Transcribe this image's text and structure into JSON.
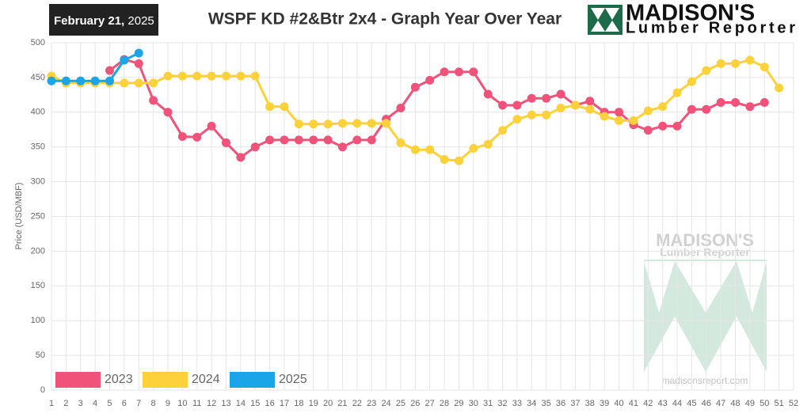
{
  "chart_data": {
    "type": "line",
    "date": {
      "bold": "February 21,",
      "regular": "2025"
    },
    "title": "WSPF KD #2&Btr 2x4 - Graph Year Over Year",
    "logo": {
      "name": "MADISON'S",
      "sub": "Lumber Reporter"
    },
    "watermark": {
      "name": "MADISON'S",
      "sub": "Lumber Reporter",
      "url": "madisonsreport.com"
    },
    "y_label": "Price  (USD/MBF)",
    "x": [
      1,
      2,
      3,
      4,
      5,
      6,
      7,
      8,
      9,
      10,
      11,
      12,
      13,
      14,
      15,
      16,
      17,
      18,
      19,
      20,
      21,
      22,
      23,
      24,
      25,
      26,
      27,
      28,
      29,
      30,
      31,
      32,
      33,
      34,
      35,
      36,
      37,
      38,
      39,
      40,
      41,
      42,
      43,
      44,
      45,
      46,
      47,
      48,
      49,
      50,
      51,
      52
    ],
    "xlim": [
      1,
      52
    ],
    "ylim": [
      0,
      500
    ],
    "yticks": [
      0,
      50,
      100,
      150,
      200,
      250,
      300,
      350,
      400,
      450,
      500
    ],
    "grid": true,
    "legend": "bottom-left",
    "series": [
      {
        "name": "2023",
        "color": "#f0527a",
        "values": [
          null,
          null,
          null,
          null,
          460,
          476,
          470,
          417,
          400,
          365,
          364,
          380,
          356,
          335,
          350,
          360,
          360,
          360,
          360,
          360,
          350,
          360,
          360,
          390,
          406,
          436,
          446,
          458,
          458,
          458,
          426,
          410,
          410,
          420,
          420,
          426,
          410,
          416,
          400,
          400,
          382,
          374,
          380,
          380,
          404,
          404,
          414,
          414,
          408,
          414,
          null,
          null
        ]
      },
      {
        "name": "2024",
        "color": "#fdd13a",
        "values": [
          452,
          442,
          442,
          442,
          442,
          442,
          442,
          442,
          452,
          452,
          452,
          452,
          452,
          452,
          452,
          408,
          408,
          383,
          383,
          383,
          384,
          384,
          384,
          384,
          356,
          346,
          346,
          332,
          330,
          348,
          354,
          374,
          390,
          396,
          396,
          406,
          410,
          404,
          394,
          388,
          388,
          402,
          408,
          428,
          444,
          460,
          470,
          470,
          475,
          465,
          435,
          null
        ]
      },
      {
        "name": "2025",
        "color": "#19a5e8",
        "values": [
          445,
          445,
          445,
          445,
          445,
          475,
          485,
          null,
          null,
          null,
          null,
          null,
          null,
          null,
          null,
          null,
          null,
          null,
          null,
          null,
          null,
          null,
          null,
          null,
          null,
          null,
          null,
          null,
          null,
          null,
          null,
          null,
          null,
          null,
          null,
          null,
          null,
          null,
          null,
          null,
          null,
          null,
          null,
          null,
          null,
          null,
          null,
          null,
          null,
          null,
          null,
          null
        ]
      }
    ]
  }
}
